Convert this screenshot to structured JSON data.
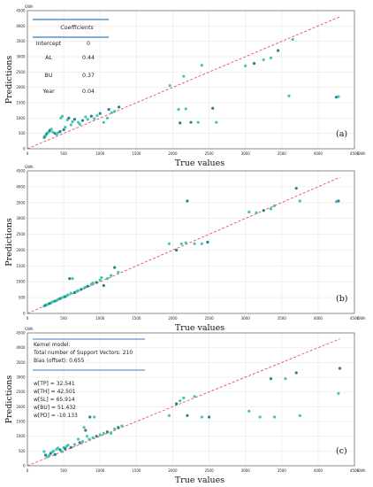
{
  "y_unit": "GWh",
  "x_unit": "GWh",
  "colors": {
    "point": "#2ec4a6",
    "point_dark": "#1a6f86",
    "ideal_line": "#e8505b",
    "frame": "#6e6e6e",
    "gridline": "#f0f0f0",
    "box_line": "#3b7dc4"
  },
  "chart_data": [
    {
      "type": "scatter",
      "panel_label": "(a)",
      "xlabel": "True values",
      "ylabel": "Predictions",
      "xlim": [
        0,
        4500
      ],
      "ylim": [
        0,
        4500
      ],
      "x_ticks": [
        "0",
        "500",
        "1000",
        "1500",
        "2000",
        "2500",
        "3000",
        "3500",
        "4000",
        "4500"
      ],
      "y_ticks": [
        "0",
        "500",
        "1000",
        "1500",
        "2000",
        "2500",
        "3000",
        "3500",
        "4000",
        "4500"
      ],
      "reference_line": "y = x",
      "legend_box": {
        "title": "Coefficients",
        "rows": [
          {
            "name": "Intercept",
            "value": "0"
          },
          {
            "name": "AL",
            "value": "0.44"
          },
          {
            "name": "BU",
            "value": "0.37"
          },
          {
            "name": "Year",
            "value": "0.04"
          }
        ]
      },
      "points": [
        [
          230,
          360
        ],
        [
          240,
          400
        ],
        [
          250,
          430
        ],
        [
          260,
          470
        ],
        [
          270,
          500
        ],
        [
          280,
          520
        ],
        [
          300,
          560
        ],
        [
          310,
          600
        ],
        [
          330,
          640
        ],
        [
          350,
          540
        ],
        [
          380,
          500
        ],
        [
          400,
          470
        ],
        [
          420,
          520
        ],
        [
          450,
          560
        ],
        [
          460,
          1000
        ],
        [
          480,
          1060
        ],
        [
          500,
          620
        ],
        [
          520,
          700
        ],
        [
          550,
          940
        ],
        [
          570,
          1000
        ],
        [
          600,
          780
        ],
        [
          620,
          880
        ],
        [
          650,
          960
        ],
        [
          700,
          860
        ],
        [
          720,
          800
        ],
        [
          760,
          920
        ],
        [
          800,
          1040
        ],
        [
          830,
          960
        ],
        [
          880,
          1060
        ],
        [
          920,
          980
        ],
        [
          960,
          1080
        ],
        [
          1000,
          1150
        ],
        [
          1050,
          860
        ],
        [
          1100,
          1000
        ],
        [
          1120,
          1280
        ],
        [
          1160,
          1180
        ],
        [
          1200,
          1220
        ],
        [
          1260,
          1360
        ],
        [
          1960,
          2060
        ],
        [
          2080,
          1280
        ],
        [
          2100,
          840
        ],
        [
          2150,
          2360
        ],
        [
          2180,
          1300
        ],
        [
          2250,
          860
        ],
        [
          2350,
          860
        ],
        [
          2400,
          2720
        ],
        [
          2550,
          1320
        ],
        [
          2600,
          860
        ],
        [
          3000,
          2700
        ],
        [
          3120,
          2780
        ],
        [
          3250,
          2900
        ],
        [
          3350,
          2960
        ],
        [
          3450,
          3200
        ],
        [
          3600,
          1720
        ],
        [
          3650,
          3560
        ],
        [
          4250,
          1680
        ],
        [
          4280,
          1700
        ]
      ]
    },
    {
      "type": "scatter",
      "panel_label": "(b)",
      "xlabel": "True values",
      "ylabel": "Predictions",
      "xlim": [
        0,
        4500
      ],
      "ylim": [
        0,
        4500
      ],
      "x_ticks": [
        "0",
        "500",
        "1000",
        "1500",
        "2000",
        "2500",
        "3000",
        "3500",
        "4000",
        "4500"
      ],
      "y_ticks": [
        "0",
        "500",
        "1000",
        "1500",
        "2000",
        "2500",
        "3000",
        "3500",
        "4000",
        "4500"
      ],
      "reference_line": "y = x",
      "points": [
        [
          230,
          230
        ],
        [
          250,
          260
        ],
        [
          270,
          280
        ],
        [
          290,
          300
        ],
        [
          310,
          320
        ],
        [
          330,
          340
        ],
        [
          350,
          370
        ],
        [
          380,
          390
        ],
        [
          400,
          410
        ],
        [
          420,
          440
        ],
        [
          450,
          470
        ],
        [
          470,
          490
        ],
        [
          500,
          520
        ],
        [
          520,
          530
        ],
        [
          540,
          560
        ],
        [
          560,
          590
        ],
        [
          580,
          1100
        ],
        [
          620,
          1100
        ],
        [
          600,
          640
        ],
        [
          650,
          660
        ],
        [
          680,
          700
        ],
        [
          700,
          720
        ],
        [
          740,
          760
        ],
        [
          780,
          800
        ],
        [
          800,
          830
        ],
        [
          830,
          860
        ],
        [
          880,
          920
        ],
        [
          900,
          960
        ],
        [
          950,
          980
        ],
        [
          1000,
          1050
        ],
        [
          1020,
          1130
        ],
        [
          1050,
          880
        ],
        [
          1100,
          1100
        ],
        [
          1150,
          1200
        ],
        [
          1200,
          1450
        ],
        [
          1250,
          1300
        ],
        [
          1950,
          2200
        ],
        [
          2050,
          2000
        ],
        [
          2120,
          2200
        ],
        [
          2180,
          2230
        ],
        [
          2200,
          3550
        ],
        [
          2300,
          2200
        ],
        [
          2400,
          2200
        ],
        [
          2480,
          2250
        ],
        [
          3050,
          3200
        ],
        [
          3150,
          3180
        ],
        [
          3250,
          3250
        ],
        [
          3350,
          3300
        ],
        [
          3400,
          3400
        ],
        [
          3700,
          3950
        ],
        [
          3750,
          3550
        ],
        [
          4250,
          3530
        ],
        [
          4280,
          3550
        ]
      ]
    },
    {
      "type": "scatter",
      "panel_label": "(c)",
      "xlabel": "True values",
      "ylabel": "Predictions",
      "xlim": [
        0,
        4500
      ],
      "ylim": [
        0,
        4500
      ],
      "x_ticks": [
        "0",
        "500",
        "1000",
        "1500",
        "2000",
        "2500",
        "3000",
        "3500",
        "4000",
        "4500"
      ],
      "y_ticks": [
        "0",
        "500",
        "1000",
        "1500",
        "2000",
        "2500",
        "3000",
        "3500",
        "4000",
        "4500"
      ],
      "reference_line": "y = x",
      "legend_box": {
        "lines": [
          "Kernel model:",
          "Total number of Support Vectors: 210",
          "Bias (offset): 0.655",
          "w[TP] = 32.541",
          "w[TH] = 42.501",
          "w[SL] = 65.914",
          "w[BU] = 51.432",
          "w[PD] = -10.133"
        ]
      },
      "points": [
        [
          230,
          480
        ],
        [
          250,
          360
        ],
        [
          270,
          300
        ],
        [
          300,
          350
        ],
        [
          320,
          420
        ],
        [
          340,
          460
        ],
        [
          360,
          500
        ],
        [
          380,
          380
        ],
        [
          400,
          560
        ],
        [
          420,
          600
        ],
        [
          450,
          540
        ],
        [
          480,
          480
        ],
        [
          500,
          620
        ],
        [
          520,
          580
        ],
        [
          540,
          660
        ],
        [
          560,
          700
        ],
        [
          600,
          620
        ],
        [
          650,
          720
        ],
        [
          700,
          900
        ],
        [
          720,
          780
        ],
        [
          760,
          820
        ],
        [
          780,
          1300
        ],
        [
          800,
          1200
        ],
        [
          820,
          1000
        ],
        [
          850,
          900
        ],
        [
          860,
          1650
        ],
        [
          900,
          950
        ],
        [
          920,
          1650
        ],
        [
          950,
          1000
        ],
        [
          1000,
          1050
        ],
        [
          1050,
          1100
        ],
        [
          1100,
          1150
        ],
        [
          1150,
          1100
        ],
        [
          1200,
          1250
        ],
        [
          1250,
          1300
        ],
        [
          1300,
          1350
        ],
        [
          1950,
          1700
        ],
        [
          2050,
          2100
        ],
        [
          2100,
          2200
        ],
        [
          2150,
          2300
        ],
        [
          2200,
          1700
        ],
        [
          2300,
          2350
        ],
        [
          2400,
          1650
        ],
        [
          2500,
          1650
        ],
        [
          3050,
          1850
        ],
        [
          3200,
          1650
        ],
        [
          3350,
          2950
        ],
        [
          3400,
          1650
        ],
        [
          3550,
          2950
        ],
        [
          3700,
          3150
        ],
        [
          3750,
          1700
        ],
        [
          4280,
          2450
        ],
        [
          4300,
          3300
        ]
      ]
    }
  ]
}
